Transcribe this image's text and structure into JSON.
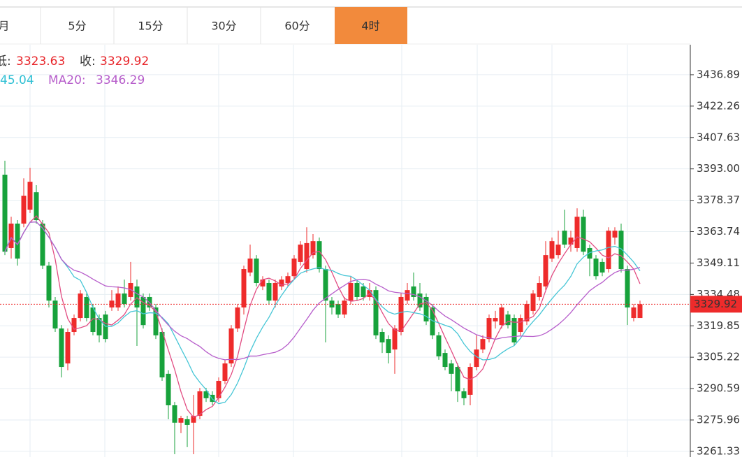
{
  "tabs": [
    "月",
    "5分",
    "15分",
    "30分",
    "60分",
    "4时"
  ],
  "active_tab": 5,
  "info": {
    "low_label": "低:",
    "low": "3323.63",
    "close_label": "收:",
    "close": "3329.92",
    "ma10": "45.04",
    "ma20_label": "MA20:",
    "ma20": "3346.29"
  },
  "chart_data": {
    "type": "candlestick",
    "open": [
      3390.3,
      3356.1,
      3367.5,
      3367.5,
      3374.0,
      3382.1,
      3367.5,
      3347.9,
      3331.6,
      3318.6,
      3302.3,
      3317.0,
      3323.5,
      3333.3,
      3328.4,
      3323.5,
      3325.1,
      3328.4,
      3328.4,
      3334.9,
      3333.3,
      3338.2,
      3333.3,
      3333.3,
      3328.4,
      3317.0,
      3297.5,
      3282.8,
      3274.7,
      3276.3,
      3274.7,
      3277.9,
      3289.3,
      3287.7,
      3286.1,
      3294.2,
      3302.3,
      3318.6,
      3328.4,
      3344.7,
      3351.2,
      3338.2,
      3339.8,
      3331.6,
      3338.2,
      3339.8,
      3343.0,
      3349.6,
      3346.3,
      3352.8,
      3359.3,
      3346.3,
      3331.6,
      3330.0,
      3325.1,
      3331.6,
      3339.8,
      3338.2,
      3333.3,
      3336.5,
      3317.0,
      3313.7,
      3308.8,
      3317.0,
      3331.6,
      3338.2,
      3334.9,
      3333.3,
      3328.4,
      3315.4,
      3307.2,
      3302.3,
      3300.7,
      3289.3,
      3287.7,
      3300.7,
      3308.8,
      3313.7,
      3321.9,
      3320.2,
      3325.1,
      3323.5,
      3317.0,
      3321.9,
      3326.8,
      3333.3,
      3338.2,
      3351.2,
      3352.8,
      3364.2,
      3357.7,
      3356.1,
      3370.7,
      3356.1,
      3351.2,
      3349.6,
      3346.3,
      3361.0,
      3364.2,
      3346.3,
      3323.5,
      3323.5
    ],
    "high": [
      3396.8,
      3370.7,
      3369.1,
      3388.6,
      3393.5,
      3385.4,
      3369.1,
      3349.6,
      3333.3,
      3320.2,
      3318.6,
      3325.1,
      3336.5,
      3334.9,
      3330.0,
      3325.1,
      3326.8,
      3336.5,
      3338.2,
      3341.4,
      3349.6,
      3341.4,
      3334.9,
      3334.9,
      3330.0,
      3318.6,
      3299.1,
      3284.4,
      3277.9,
      3277.9,
      3287.7,
      3290.9,
      3290.9,
      3289.3,
      3295.8,
      3304.0,
      3320.2,
      3330.0,
      3347.9,
      3357.7,
      3352.8,
      3343.0,
      3341.4,
      3341.4,
      3343.0,
      3344.7,
      3352.8,
      3359.3,
      3365.8,
      3362.6,
      3361.0,
      3347.9,
      3333.3,
      3331.6,
      3333.3,
      3343.0,
      3341.4,
      3339.8,
      3339.8,
      3338.2,
      3318.6,
      3315.4,
      3320.2,
      3334.9,
      3339.8,
      3344.7,
      3339.8,
      3334.9,
      3330.0,
      3317.0,
      3308.8,
      3304.0,
      3302.3,
      3290.9,
      3302.3,
      3315.4,
      3315.4,
      3325.1,
      3326.8,
      3330.0,
      3326.8,
      3325.1,
      3325.1,
      3331.6,
      3336.5,
      3343.0,
      3359.3,
      3361.0,
      3364.2,
      3374.0,
      3364.2,
      3374.6,
      3374.0,
      3357.7,
      3352.8,
      3351.2,
      3365.8,
      3365.8,
      3367.5,
      3347.9,
      3330.0,
      3331.6
    ],
    "low": [
      3352.8,
      3351.2,
      3347.9,
      3365.8,
      3372.4,
      3367.5,
      3346.3,
      3328.4,
      3317.0,
      3295.8,
      3299.1,
      3315.4,
      3321.9,
      3321.9,
      3315.4,
      3312.1,
      3312.1,
      3326.8,
      3326.8,
      3328.4,
      3331.6,
      3310.5,
      3318.6,
      3326.8,
      3313.7,
      3294.2,
      3276.3,
      3260.0,
      3269.8,
      3263.3,
      3260.0,
      3276.3,
      3284.4,
      3282.8,
      3284.4,
      3292.6,
      3300.7,
      3317.0,
      3325.1,
      3343.0,
      3338.2,
      3336.5,
      3330.0,
      3328.4,
      3336.5,
      3338.2,
      3341.4,
      3347.9,
      3344.7,
      3351.2,
      3344.7,
      3312.1,
      3325.1,
      3323.5,
      3323.5,
      3330.0,
      3331.6,
      3331.6,
      3331.6,
      3313.7,
      3307.2,
      3302.3,
      3297.5,
      3315.4,
      3330.0,
      3331.6,
      3326.8,
      3320.2,
      3313.7,
      3304.0,
      3299.1,
      3289.3,
      3284.4,
      3282.8,
      3282.8,
      3299.1,
      3307.2,
      3312.1,
      3318.6,
      3318.6,
      3318.6,
      3310.5,
      3315.4,
      3320.2,
      3325.1,
      3331.6,
      3336.5,
      3349.6,
      3351.2,
      3356.1,
      3354.4,
      3354.4,
      3352.8,
      3343.0,
      3341.4,
      3343.0,
      3344.7,
      3357.7,
      3344.7,
      3320.2,
      3321.9,
      3323.63
    ],
    "close": [
      3354.4,
      3367.5,
      3351.2,
      3380.5,
      3387.0,
      3369.1,
      3347.9,
      3331.6,
      3318.6,
      3300.7,
      3317.0,
      3323.5,
      3334.9,
      3323.5,
      3317.0,
      3315.4,
      3313.7,
      3331.6,
      3334.9,
      3330.0,
      3339.8,
      3328.4,
      3320.2,
      3328.4,
      3315.4,
      3295.8,
      3282.8,
      3274.7,
      3276.9,
      3273.7,
      3277.9,
      3289.3,
      3286.1,
      3284.4,
      3294.2,
      3302.3,
      3318.6,
      3328.4,
      3346.3,
      3351.2,
      3339.8,
      3341.4,
      3331.6,
      3339.8,
      3341.4,
      3343.0,
      3351.2,
      3357.7,
      3358.4,
      3359.3,
      3346.3,
      3331.6,
      3328.4,
      3325.1,
      3331.6,
      3339.8,
      3333.3,
      3333.3,
      3336.5,
      3315.4,
      3312.1,
      3307.2,
      3318.6,
      3333.3,
      3336.5,
      3333.3,
      3328.4,
      3321.9,
      3315.4,
      3305.6,
      3300.7,
      3297.5,
      3289.3,
      3286.1,
      3300.7,
      3308.8,
      3313.7,
      3323.5,
      3323.5,
      3328.4,
      3320.2,
      3312.1,
      3323.5,
      3330.0,
      3334.9,
      3339.8,
      3352.8,
      3359.3,
      3357.7,
      3357.7,
      3361.0,
      3370.7,
      3354.4,
      3351.2,
      3343.0,
      3344.7,
      3364.2,
      3364.2,
      3346.3,
      3328.4,
      3328.4,
      3329.92
    ],
    "up_color": "#ee2b2b",
    "down_color": "#17a23b",
    "ma_lines": [
      {
        "period": 5,
        "color": "#e24c82"
      },
      {
        "period": 10,
        "color": "#46c6d6"
      },
      {
        "period": 20,
        "color": "#b75ecb"
      }
    ],
    "last_price": 3329.92,
    "ylim": [
      3258.7,
      3451.2
    ],
    "yticks": [
      3261.33,
      3275.96,
      3290.59,
      3305.22,
      3319.85,
      3334.48,
      3349.11,
      3363.74,
      3378.37,
      {
        "value": 3393,
        "label": "3393.00"
      },
      3407.63,
      3422.26,
      3436.89
    ],
    "grid": true
  }
}
